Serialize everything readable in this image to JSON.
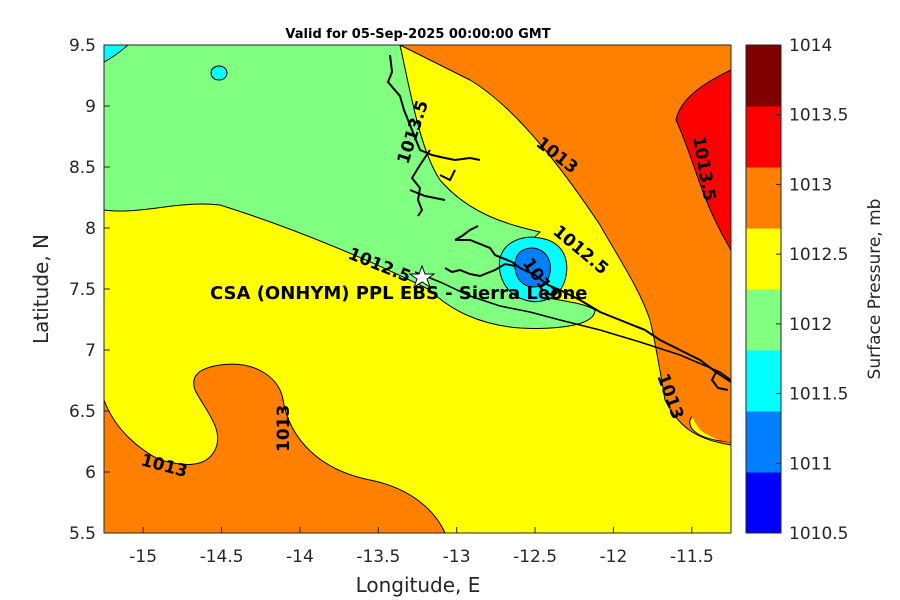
{
  "title": "Valid for 05-Sep-2025 00:00:00 GMT",
  "site_label": "CSA (ONHYM) PPL EBS  - Sierra Leone",
  "colorbar": {
    "label": "Surface Pressure, mb",
    "levels": [
      "1010.5",
      "1011",
      "1011.5",
      "1012",
      "1012.5",
      "1013",
      "1013.5",
      "1014"
    ],
    "colors": [
      "#0000ff",
      "#0080ff",
      "#00ffff",
      "#80ff80",
      "#ffff00",
      "#ff8000",
      "#ff0000",
      "#800000"
    ]
  },
  "contour_labels": {
    "c1": "1013.5",
    "c2": "1013",
    "c3": "1013.5",
    "c4": "1012.5",
    "c5": "1012.5",
    "c6": "1012",
    "c7": "1013",
    "c8": "1013",
    "c9": "1013"
  },
  "chart_data": {
    "type": "contour-map",
    "title": "Valid for 05-Sep-2025 00:00:00 GMT",
    "xlabel": "Longitude, E",
    "ylabel": "Latitude, N",
    "xlim": [
      -15.25,
      -11.25
    ],
    "ylim": [
      5.5,
      9.5
    ],
    "xticks": [
      "-15",
      "-14.5",
      "-14",
      "-13.5",
      "-13",
      "-12.5",
      "-12",
      "-11.5"
    ],
    "yticks": [
      "5.5",
      "6",
      "6.5",
      "7",
      "7.5",
      "8",
      "8.5",
      "9",
      "9.5"
    ],
    "site": {
      "name": "CSA (ONHYM) PPL EBS  - Sierra Leone",
      "lon": -13.25,
      "lat": 7.6
    },
    "clim": [
      1010.5,
      1014
    ],
    "contour_levels": [
      1011,
      1011.5,
      1012,
      1012.5,
      1013,
      1013.5
    ],
    "low_center": {
      "lon": -12.5,
      "lat": 7.6,
      "min_pressure": 1011
    }
  }
}
